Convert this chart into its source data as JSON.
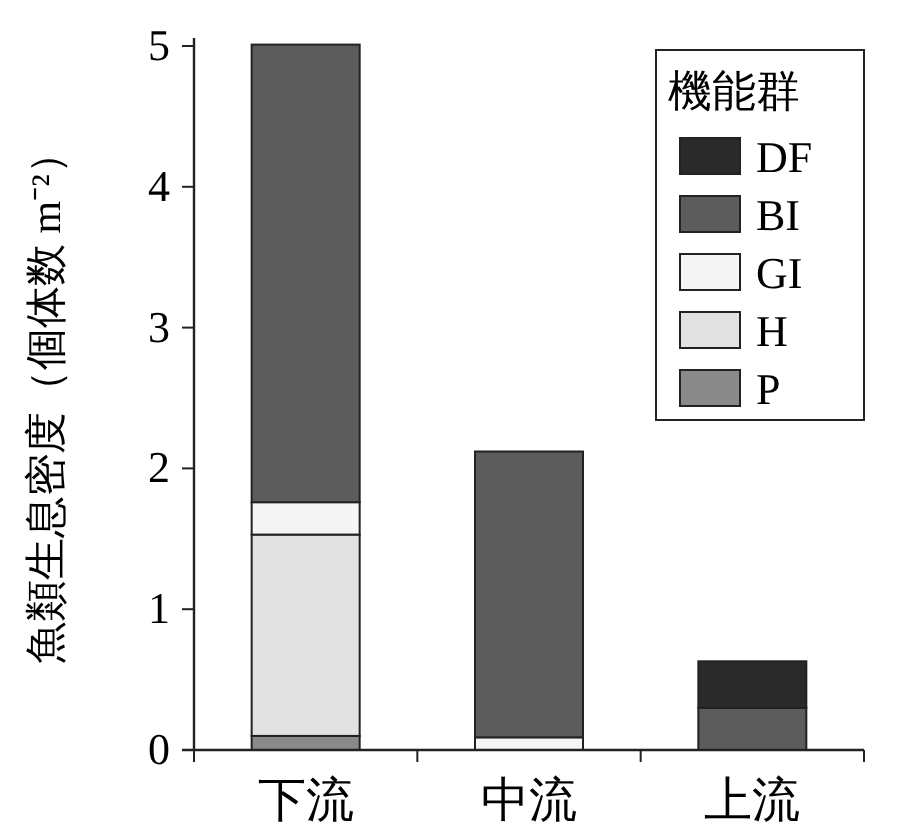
{
  "chart_data": {
    "type": "bar",
    "stacked": true,
    "ylabel": "魚類生息密度（個体数 m⁻²）",
    "legend_title": "機能群",
    "legend": "top right",
    "categories": [
      "下流",
      "中流",
      "上流"
    ],
    "series": [
      {
        "name": "P",
        "color": "#8a8a8a",
        "values": [
          0.1,
          0,
          0
        ]
      },
      {
        "name": "H",
        "color": "#e2e2e2",
        "values": [
          1.43,
          0,
          0
        ]
      },
      {
        "name": "GI",
        "color": "#f5f5f5",
        "values": [
          0.23,
          0.09,
          0
        ]
      },
      {
        "name": "BI",
        "color": "#5c5c5c",
        "values": [
          3.25,
          2.03,
          0.3
        ]
      },
      {
        "name": "DF",
        "color": "#2a2a2a",
        "values": [
          0,
          0,
          0.33
        ]
      }
    ],
    "ylim": [
      0,
      5
    ],
    "yticks": [
      0,
      1,
      2,
      3,
      4,
      5
    ],
    "grid": false
  }
}
